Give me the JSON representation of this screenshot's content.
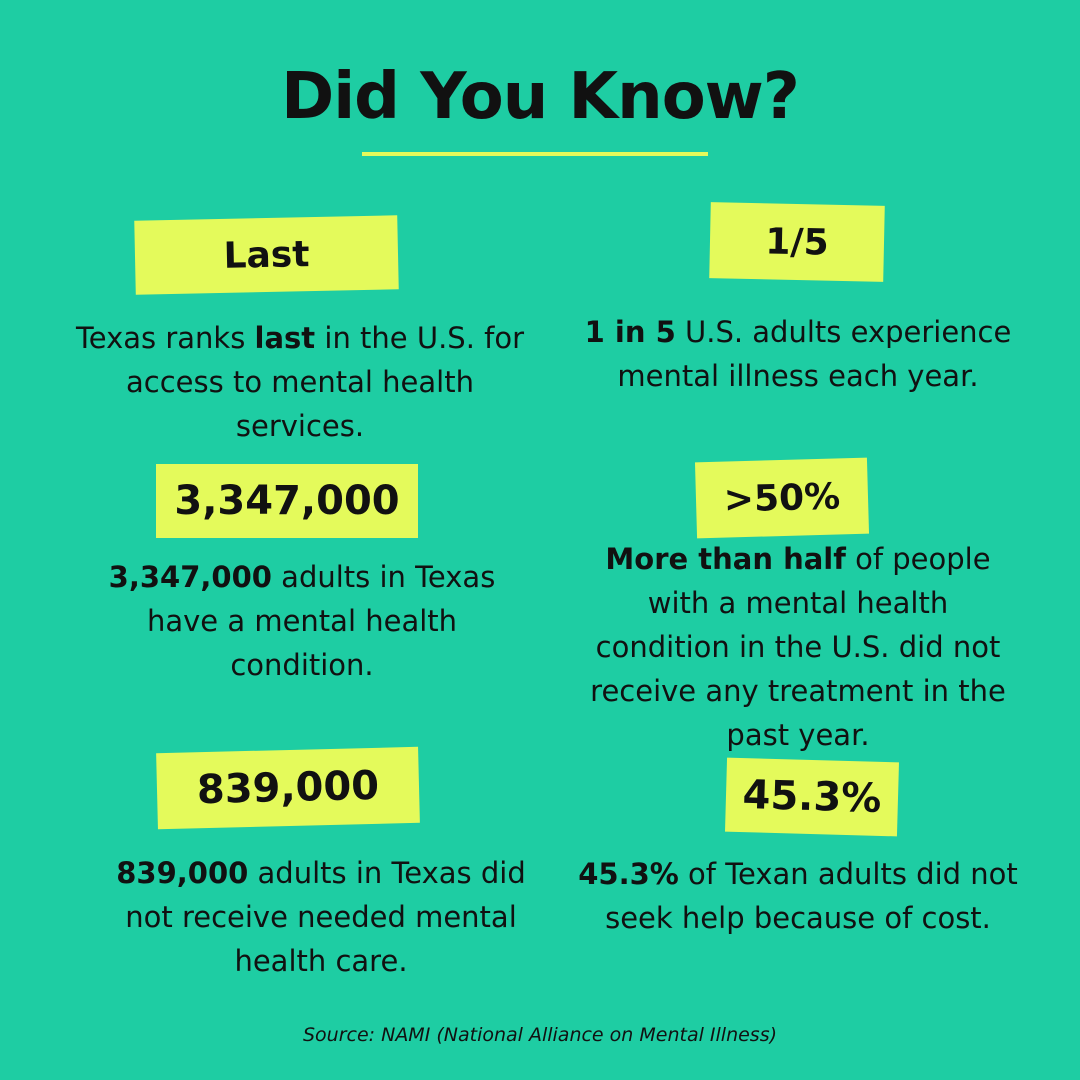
{
  "title": "Did You Know?",
  "accent_color": "#e4fa5b",
  "background_color": "#1ecda3",
  "facts": [
    {
      "tag": "Last",
      "bold": "",
      "pre": "Texas ranks ",
      "mid": "last",
      "post": " in the U.S. for access to mental health services."
    },
    {
      "tag": "1/5",
      "bold": "1 in 5",
      "text": " U.S. adults experience mental illness each year."
    },
    {
      "tag": "3,347,000",
      "bold": "3,347,000",
      "text": " adults in Texas have a mental health condition."
    },
    {
      "tag": ">50%",
      "bold": "More than half",
      "text": " of people with a mental health condition in the U.S. did not receive any treatment in the past year."
    },
    {
      "tag": "839,000",
      "bold": "839,000",
      "text": " adults in Texas did not receive needed mental health care."
    },
    {
      "tag": "45.3%",
      "bold": "45.3%",
      "text": " of Texan adults did not seek help because of cost."
    }
  ],
  "source": "Source: NAMI (National Alliance on Mental Illness)"
}
